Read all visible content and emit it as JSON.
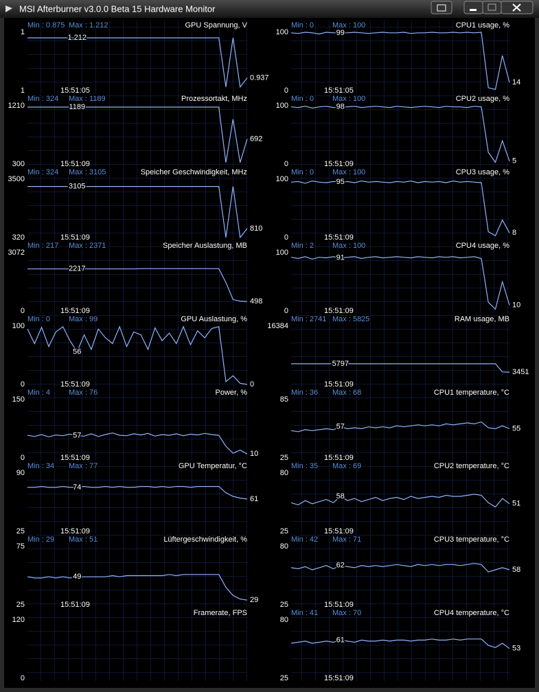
{
  "window": {
    "title": "MSI Afterburner v3.0.0 Beta 15 Hardware Monitor"
  },
  "chart_data": [
    {
      "type": "line",
      "title": "GPU Spannung, V",
      "min_label": "Min : 0.875",
      "max_label": "Max : 1.212",
      "time_label": "15:51:05",
      "color": "#8fb4ff",
      "ylim": [
        0.85,
        1.25
      ],
      "yticks": [
        {
          "value": 1.25,
          "label": "1"
        },
        {
          "value": 0.85,
          "label": "1"
        }
      ],
      "values": [
        1.212,
        1.212,
        1.212,
        1.212,
        1.212,
        1.212,
        1.212,
        1.212,
        1.212,
        1.212,
        1.212,
        1.212,
        1.212,
        1.212,
        1.212,
        1.212,
        1.212,
        1.212,
        1.212,
        1.212,
        1.212,
        1.212,
        1.212,
        1.212,
        1.212,
        1.212,
        1.212,
        1.212,
        0.875,
        1.212,
        0.875,
        0.937
      ]
    },
    {
      "type": "line",
      "title": "Prozessortakt, MHz",
      "min_label": "Min : 324",
      "max_label": "Max : 1189",
      "time_label": "15:51:09",
      "color": "#8fb4ff",
      "ylim": [
        300,
        1210
      ],
      "yticks": [
        1210,
        300
      ],
      "values": [
        1189,
        1189,
        1189,
        1189,
        1189,
        1189,
        1189,
        1189,
        1189,
        1189,
        1189,
        1189,
        1189,
        1189,
        1189,
        1189,
        1189,
        1189,
        1189,
        1189,
        1189,
        1189,
        1189,
        1189,
        1189,
        1189,
        1189,
        1189,
        324,
        1000,
        324,
        692
      ]
    },
    {
      "type": "line",
      "title": "Speicher Geschwindigkeit, MHz",
      "min_label": "Min : 324",
      "max_label": "Max : 3105",
      "time_label": "15:51:09",
      "color": "#8fb4ff",
      "ylim": [
        320,
        3500
      ],
      "yticks": [
        3500,
        320
      ],
      "values": [
        3105,
        3105,
        3105,
        3105,
        3105,
        3105,
        3105,
        3105,
        3105,
        3105,
        3105,
        3105,
        3105,
        3105,
        3105,
        3105,
        3105,
        3105,
        3105,
        3105,
        3105,
        3105,
        3105,
        3105,
        3105,
        3105,
        3105,
        3105,
        324,
        3105,
        324,
        810
      ]
    },
    {
      "type": "line",
      "title": "Speicher Auslastung, MB",
      "min_label": "Min : 217",
      "max_label": "Max : 2371",
      "time_label": "15:51:09",
      "color": "#8fb4ff",
      "ylim": [
        0,
        3072
      ],
      "yticks": [
        3072,
        0
      ],
      "values": [
        2217,
        2217,
        2217,
        2217,
        2217,
        2217,
        2217,
        2217,
        2217,
        2217,
        2217,
        2217,
        2217,
        2217,
        2217,
        2217,
        2230,
        2230,
        2230,
        2230,
        2230,
        2230,
        2230,
        2230,
        2230,
        2230,
        2230,
        2230,
        1500,
        600,
        520,
        498
      ]
    },
    {
      "type": "line",
      "title": "GPU Auslastung, %",
      "min_label": "Min : 0",
      "max_label": "Max : 99",
      "time_label": "15:51:09",
      "color": "#8fb4ff",
      "ylim": [
        0,
        100
      ],
      "yticks": [
        100,
        0
      ],
      "values": [
        95,
        70,
        98,
        65,
        90,
        99,
        75,
        56,
        85,
        60,
        95,
        80,
        70,
        99,
        65,
        90,
        85,
        60,
        97,
        75,
        88,
        70,
        99,
        68,
        92,
        80,
        96,
        99,
        5,
        15,
        2,
        0
      ]
    },
    {
      "type": "line",
      "title": "Power, %",
      "min_label": "Min : 4",
      "max_label": "Max : 76",
      "time_label": "15:51:09",
      "color": "#8fb4ff",
      "ylim": [
        0,
        150
      ],
      "yticks": [
        150,
        0
      ],
      "values": [
        58,
        55,
        60,
        54,
        59,
        57,
        61,
        57,
        56,
        62,
        55,
        60,
        64,
        58,
        57,
        62,
        59,
        63,
        56,
        60,
        58,
        62,
        57,
        61,
        59,
        63,
        60,
        58,
        30,
        12,
        20,
        10
      ]
    },
    {
      "type": "line",
      "title": "GPU Temperatur, °C",
      "min_label": "Min : 34",
      "max_label": "Max : 77",
      "time_label": "15:51:09",
      "color": "#8fb4ff",
      "ylim": [
        25,
        90
      ],
      "yticks": [
        90,
        25
      ],
      "values": [
        74,
        74,
        75,
        74,
        74,
        75,
        74,
        74,
        75,
        74,
        74,
        75,
        74,
        75,
        74,
        74,
        75,
        75,
        74,
        75,
        74,
        75,
        75,
        74,
        75,
        75,
        75,
        75,
        68,
        64,
        62,
        61
      ]
    },
    {
      "type": "line",
      "title": "Lüftergeschwindigkeit, %",
      "min_label": "Min : 29",
      "max_label": "Max : 51",
      "time_label": "15:51:09",
      "color": "#8fb4ff",
      "ylim": [
        25,
        75
      ],
      "yticks": [
        75,
        25
      ],
      "values": [
        49,
        48,
        48,
        49,
        48,
        49,
        48,
        49,
        49,
        49,
        49,
        49,
        50,
        49,
        50,
        50,
        50,
        50,
        50,
        50,
        51,
        50,
        51,
        51,
        51,
        51,
        51,
        51,
        40,
        33,
        30,
        29
      ]
    },
    {
      "type": "line",
      "title": "Framerate, FPS",
      "color": "#8fb4ff",
      "ylim": [
        0,
        120
      ],
      "yticks": [
        120,
        0
      ],
      "values": []
    },
    {
      "type": "line",
      "title": "CPU1 usage, %",
      "min_label": "Min : 0",
      "max_label": "Max : 100",
      "time_label": "15:51:05",
      "color": "#8fb4ff",
      "ylim": [
        0,
        100
      ],
      "yticks": [
        100,
        0
      ],
      "values": [
        99,
        98,
        100,
        99,
        97,
        100,
        99,
        99,
        99,
        100,
        99,
        98,
        99,
        100,
        99,
        99,
        100,
        98,
        99,
        99,
        100,
        99,
        99,
        100,
        99,
        100,
        99,
        100,
        5,
        2,
        60,
        14
      ]
    },
    {
      "type": "line",
      "title": "CPU2 usage, %",
      "min_label": "Min : 0",
      "max_label": "Max : 100",
      "time_label": "15:51:09",
      "color": "#8fb4ff",
      "ylim": [
        0,
        100
      ],
      "yticks": [
        100,
        0
      ],
      "values": [
        98,
        97,
        99,
        96,
        98,
        99,
        97,
        98,
        98,
        99,
        97,
        98,
        99,
        98,
        97,
        99,
        98,
        97,
        98,
        99,
        98,
        97,
        99,
        98,
        98,
        97,
        99,
        98,
        20,
        3,
        40,
        5
      ]
    },
    {
      "type": "line",
      "title": "CPU3 usage, %",
      "min_label": "Min : 0",
      "max_label": "Max : 100",
      "time_label": "15:51:09",
      "color": "#8fb4ff",
      "ylim": [
        0,
        100
      ],
      "yticks": [
        100,
        0
      ],
      "values": [
        95,
        96,
        93,
        97,
        95,
        94,
        96,
        95,
        96,
        94,
        97,
        95,
        96,
        95,
        94,
        96,
        95,
        97,
        94,
        96,
        95,
        96,
        94,
        97,
        95,
        96,
        95,
        94,
        10,
        3,
        30,
        8
      ]
    },
    {
      "type": "line",
      "title": "CPU4 usage, %",
      "min_label": "Min : 2",
      "max_label": "Max : 100",
      "time_label": "15:51:09",
      "color": "#8fb4ff",
      "ylim": [
        0,
        100
      ],
      "yticks": [
        100,
        0
      ],
      "values": [
        92,
        90,
        93,
        89,
        92,
        91,
        93,
        91,
        92,
        93,
        90,
        92,
        93,
        91,
        92,
        93,
        92,
        91,
        93,
        92,
        91,
        93,
        92,
        93,
        91,
        92,
        93,
        90,
        15,
        3,
        50,
        10
      ]
    },
    {
      "type": "line",
      "title": "RAM usage, MB",
      "min_label": "Min : 2741",
      "max_label": "Max : 5825",
      "time_label": "15:51:09",
      "color": "#8fb4ff",
      "ylim": [
        0,
        16384
      ],
      "yticks": [
        16384
      ],
      "values": [
        5797,
        5797,
        5797,
        5797,
        5797,
        5797,
        5797,
        5797,
        5797,
        5797,
        5797,
        5797,
        5797,
        5797,
        5797,
        5797,
        5797,
        5797,
        5797,
        5797,
        5797,
        5797,
        5797,
        5797,
        5797,
        5797,
        5797,
        5797,
        5797,
        5797,
        3500,
        3451
      ]
    },
    {
      "type": "line",
      "title": "CPU1 temperature, °C",
      "min_label": "Min : 36",
      "max_label": "Max : 68",
      "time_label": "15:51:09",
      "color": "#8fb4ff",
      "ylim": [
        25,
        85
      ],
      "yticks": [
        85,
        25
      ],
      "values": [
        53,
        52,
        54,
        53,
        54,
        55,
        54,
        57,
        55,
        56,
        55,
        57,
        56,
        57,
        56,
        58,
        57,
        58,
        59,
        58,
        59,
        58,
        60,
        59,
        60,
        61,
        60,
        62,
        56,
        55,
        58,
        55
      ]
    },
    {
      "type": "line",
      "title": "CPU2 temperature, °C",
      "min_label": "Min : 35",
      "max_label": "Max : 69",
      "time_label": "15:51:09",
      "color": "#8fb4ff",
      "ylim": [
        25,
        80
      ],
      "yticks": [
        80,
        25
      ],
      "values": [
        52,
        50,
        54,
        51,
        53,
        55,
        52,
        58,
        54,
        56,
        53,
        55,
        57,
        54,
        56,
        57,
        55,
        58,
        56,
        57,
        58,
        57,
        59,
        58,
        58,
        59,
        60,
        59,
        52,
        48,
        56,
        51
      ]
    },
    {
      "type": "line",
      "title": "CPU3 temperature, °C",
      "min_label": "Min : 42",
      "max_label": "Max : 71",
      "time_label": "15:51:09",
      "color": "#8fb4ff",
      "ylim": [
        25,
        80
      ],
      "yticks": [
        80,
        25
      ],
      "values": [
        60,
        59,
        61,
        58,
        60,
        62,
        59,
        62,
        61,
        60,
        62,
        61,
        62,
        61,
        62,
        63,
        62,
        61,
        63,
        62,
        63,
        62,
        63,
        63,
        62,
        63,
        64,
        63,
        56,
        58,
        60,
        58
      ]
    },
    {
      "type": "line",
      "title": "CPU4 temperature, °C",
      "min_label": "Min : 41",
      "max_label": "Max : 70",
      "time_label": "15:51:09",
      "color": "#8fb4ff",
      "ylim": [
        25,
        80
      ],
      "yticks": [
        80,
        25
      ],
      "values": [
        58,
        59,
        60,
        58,
        59,
        60,
        59,
        61,
        60,
        59,
        61,
        60,
        60,
        61,
        60,
        61,
        61,
        60,
        61,
        61,
        62,
        61,
        61,
        62,
        61,
        62,
        62,
        62,
        56,
        54,
        58,
        53
      ]
    }
  ]
}
